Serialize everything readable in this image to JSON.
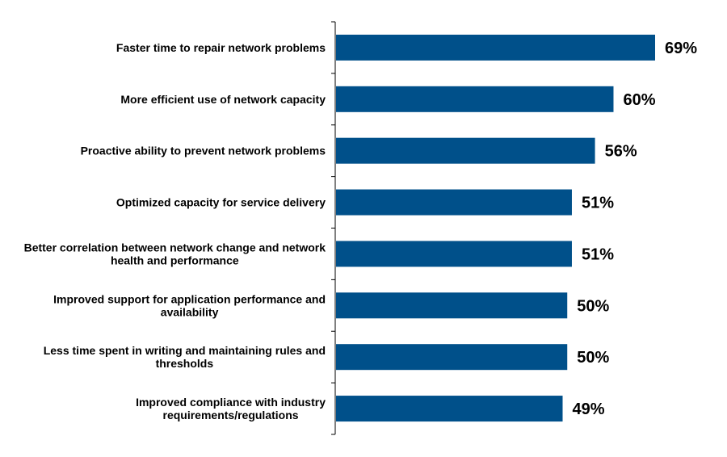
{
  "chart_data": {
    "type": "bar",
    "orientation": "horizontal",
    "categories": [
      "Faster time to repair network problems",
      "More efficient use of network capacity",
      "Proactive ability to prevent network problems",
      "Optimized capacity for service delivery",
      "Better correlation between network change and network health and performance",
      "Improved support for application performance and availability",
      "Less time spent in writing and maintaining rules and thresholds",
      "Improved compliance with industry requirements/regulations"
    ],
    "category_lines": [
      [
        "Faster time to repair network problems"
      ],
      [
        "More efficient use of network capacity"
      ],
      [
        "Proactive ability to prevent network problems"
      ],
      [
        "Optimized capacity for service delivery"
      ],
      [
        "Better correlation between network change and network",
        "health and performance"
      ],
      [
        "Improved support for application performance and",
        "availability"
      ],
      [
        "Less time spent in writing and maintaining rules and",
        "thresholds"
      ],
      [
        "Improved compliance with industry",
        "requirements/regulations"
      ]
    ],
    "values": [
      69,
      60,
      56,
      51,
      51,
      50,
      50,
      49
    ],
    "value_labels": [
      "69%",
      "60%",
      "56%",
      "51%",
      "51%",
      "50%",
      "50%",
      "49%"
    ],
    "xlim": [
      0,
      69
    ],
    "bar_color": "#00508A",
    "grid": false,
    "legend": "none"
  }
}
